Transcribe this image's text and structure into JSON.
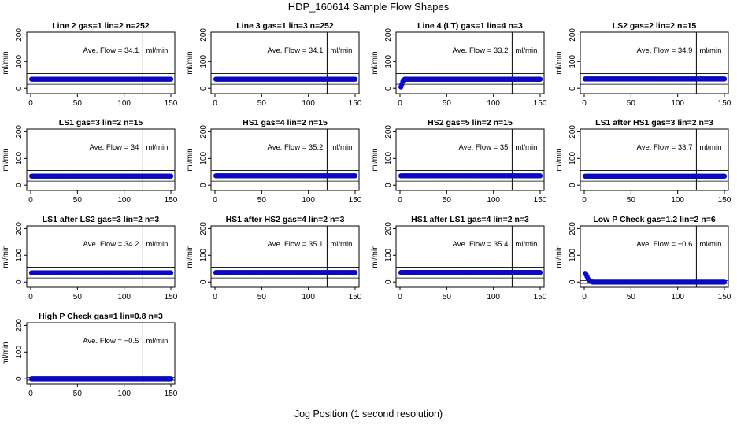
{
  "page": {
    "title": "HDP_160614  Sample Flow Shapes",
    "xlabel": "Jog Position (1 second resolution)"
  },
  "chart_data": [
    {
      "type": "scatter",
      "title": "Line 2 gas=1 lin=2 n=252",
      "ylabel": "ml/min",
      "xlim": [
        0,
        150
      ],
      "ylim": [
        -20,
        210
      ],
      "xticks": [
        0,
        50,
        100,
        150
      ],
      "yticks": [
        0,
        100,
        200
      ],
      "vline_x": 120,
      "hlines": [
        15,
        55
      ],
      "ave_flow_label": "Ave. Flow =",
      "ave_flow": "34.1",
      "unit": "ml/min",
      "series": [
        {
          "shape": "flat",
          "level": 34.1
        }
      ]
    },
    {
      "type": "scatter",
      "title": "Line 3 gas=1 lin=3 n=252",
      "ylabel": "ml/min",
      "xlim": [
        0,
        150
      ],
      "ylim": [
        -20,
        210
      ],
      "xticks": [
        0,
        50,
        100,
        150
      ],
      "yticks": [
        0,
        100,
        200
      ],
      "vline_x": 120,
      "hlines": [
        15,
        55
      ],
      "ave_flow_label": "Ave. Flow =",
      "ave_flow": "34.1",
      "unit": "ml/min",
      "series": [
        {
          "shape": "flat",
          "level": 34.1
        }
      ]
    },
    {
      "type": "scatter",
      "title": "Line 4 (LT) gas=1 lin=4 n=3",
      "ylabel": "ml/min",
      "xlim": [
        0,
        150
      ],
      "ylim": [
        -20,
        210
      ],
      "xticks": [
        0,
        50,
        100,
        150
      ],
      "yticks": [
        0,
        100,
        200
      ],
      "vline_x": 120,
      "hlines": [
        15,
        55
      ],
      "ave_flow_label": "Ave. Flow =",
      "ave_flow": "33.2",
      "unit": "ml/min",
      "series": [
        {
          "shape": "rise",
          "level": 34,
          "start": [
            [
              1,
              5
            ],
            [
              2,
              15
            ],
            [
              3,
              25
            ],
            [
              4,
              31
            ]
          ]
        }
      ]
    },
    {
      "type": "scatter",
      "title": "LS2 gas=2 lin=2 n=15",
      "ylabel": "ml/min",
      "xlim": [
        0,
        150
      ],
      "ylim": [
        -20,
        210
      ],
      "xticks": [
        0,
        50,
        100,
        150
      ],
      "yticks": [
        0,
        100,
        200
      ],
      "vline_x": 120,
      "hlines": [
        15,
        55
      ],
      "ave_flow_label": "Ave. Flow =",
      "ave_flow": "34.9",
      "unit": "ml/min",
      "series": [
        {
          "shape": "flat",
          "level": 34.9
        }
      ]
    },
    {
      "type": "scatter",
      "title": "LS1 gas=3 lin=2 n=15",
      "ylabel": "ml/min",
      "xlim": [
        0,
        150
      ],
      "ylim": [
        -20,
        210
      ],
      "xticks": [
        0,
        50,
        100,
        150
      ],
      "yticks": [
        0,
        100,
        200
      ],
      "vline_x": 120,
      "hlines": [
        15,
        55
      ],
      "ave_flow_label": "Ave. Flow =",
      "ave_flow": "34",
      "unit": "ml/min",
      "series": [
        {
          "shape": "flat",
          "level": 34
        }
      ]
    },
    {
      "type": "scatter",
      "title": "HS1 gas=4 lin=2 n=15",
      "ylabel": "ml/min",
      "xlim": [
        0,
        150
      ],
      "ylim": [
        -20,
        210
      ],
      "xticks": [
        0,
        50,
        100,
        150
      ],
      "yticks": [
        0,
        100,
        200
      ],
      "vline_x": 120,
      "hlines": [
        15,
        55
      ],
      "ave_flow_label": "Ave. Flow =",
      "ave_flow": "35.2",
      "unit": "ml/min",
      "series": [
        {
          "shape": "flat",
          "level": 35.2
        }
      ]
    },
    {
      "type": "scatter",
      "title": "HS2 gas=5 lin=2 n=15",
      "ylabel": "ml/min",
      "xlim": [
        0,
        150
      ],
      "ylim": [
        -20,
        210
      ],
      "xticks": [
        0,
        50,
        100,
        150
      ],
      "yticks": [
        0,
        100,
        200
      ],
      "vline_x": 120,
      "hlines": [
        15,
        55
      ],
      "ave_flow_label": "Ave. Flow =",
      "ave_flow": "35",
      "unit": "ml/min",
      "series": [
        {
          "shape": "flat",
          "level": 35
        }
      ]
    },
    {
      "type": "scatter",
      "title": "LS1 after HS1 gas=3 lin=2 n=3",
      "ylabel": "ml/min",
      "xlim": [
        0,
        150
      ],
      "ylim": [
        -20,
        210
      ],
      "xticks": [
        0,
        50,
        100,
        150
      ],
      "yticks": [
        0,
        100,
        200
      ],
      "vline_x": 120,
      "hlines": [
        15,
        55
      ],
      "ave_flow_label": "Ave. Flow =",
      "ave_flow": "33.7",
      "unit": "ml/min",
      "series": [
        {
          "shape": "flat",
          "level": 33.7
        }
      ]
    },
    {
      "type": "scatter",
      "title": "LS1 after LS2 gas=3 lin=2 n=3",
      "ylabel": "ml/min",
      "xlim": [
        0,
        150
      ],
      "ylim": [
        -20,
        210
      ],
      "xticks": [
        0,
        50,
        100,
        150
      ],
      "yticks": [
        0,
        100,
        200
      ],
      "vline_x": 120,
      "hlines": [
        15,
        55
      ],
      "ave_flow_label": "Ave. Flow =",
      "ave_flow": "34.2",
      "unit": "ml/min",
      "series": [
        {
          "shape": "flat",
          "level": 34.2
        }
      ]
    },
    {
      "type": "scatter",
      "title": "HS1 after HS2 gas=4 lin=2 n=3",
      "ylabel": "ml/min",
      "xlim": [
        0,
        150
      ],
      "ylim": [
        -20,
        210
      ],
      "xticks": [
        0,
        50,
        100,
        150
      ],
      "yticks": [
        0,
        100,
        200
      ],
      "vline_x": 120,
      "hlines": [
        15,
        55
      ],
      "ave_flow_label": "Ave. Flow =",
      "ave_flow": "35.1",
      "unit": "ml/min",
      "series": [
        {
          "shape": "flat",
          "level": 35.1
        }
      ]
    },
    {
      "type": "scatter",
      "title": "HS1 after LS1 gas=4 lin=2 n=3",
      "ylabel": "ml/min",
      "xlim": [
        0,
        150
      ],
      "ylim": [
        -20,
        210
      ],
      "xticks": [
        0,
        50,
        100,
        150
      ],
      "yticks": [
        0,
        100,
        200
      ],
      "vline_x": 120,
      "hlines": [
        15,
        55
      ],
      "ave_flow_label": "Ave. Flow =",
      "ave_flow": "35.4",
      "unit": "ml/min",
      "series": [
        {
          "shape": "flat",
          "level": 35.4
        }
      ]
    },
    {
      "type": "scatter",
      "title": "Low P Check gas=1.2 lin=2 n=6",
      "ylabel": "ml/min",
      "xlim": [
        0,
        150
      ],
      "ylim": [
        -20,
        210
      ],
      "xticks": [
        0,
        50,
        100,
        150
      ],
      "yticks": [
        0,
        100,
        200
      ],
      "vline_x": 120,
      "hlines": [
        -5,
        5
      ],
      "ave_flow_label": "Ave. Flow =",
      "ave_flow": "−0.6",
      "unit": "ml/min",
      "series": [
        {
          "shape": "decay",
          "level": -0.6,
          "start": [
            [
              1,
              32
            ],
            [
              2,
              28
            ],
            [
              3,
              20
            ],
            [
              4,
              12
            ],
            [
              5,
              7
            ],
            [
              6,
              4
            ],
            [
              7,
              2
            ],
            [
              8,
              1
            ]
          ]
        }
      ]
    },
    {
      "type": "scatter",
      "title": "High P Check gas=1 lin=0.8 n=3",
      "ylabel": "ml/min",
      "xlim": [
        0,
        150
      ],
      "ylim": [
        -20,
        210
      ],
      "xticks": [
        0,
        50,
        100,
        150
      ],
      "yticks": [
        0,
        100,
        200
      ],
      "vline_x": 120,
      "hlines": [
        -5,
        5
      ],
      "ave_flow_label": "Ave. Flow =",
      "ave_flow": "−0.5",
      "unit": "ml/min",
      "series": [
        {
          "shape": "flat",
          "level": -0.5
        }
      ]
    }
  ],
  "style": {
    "point_color": "#0000ff",
    "point_edge": "#1010a0",
    "axis_color": "#000000"
  }
}
